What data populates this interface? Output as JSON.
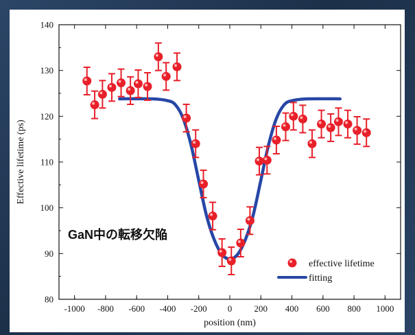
{
  "chart_data": {
    "type": "scatter",
    "annotation": "GaN中の転移欠陥",
    "xlabel": "position (nm)",
    "ylabel": "Effective lifetime (ps)",
    "xlim": [
      -1100,
      1100
    ],
    "ylim": [
      80,
      140
    ],
    "xticks": [
      -1000,
      -800,
      -600,
      -400,
      -200,
      0,
      200,
      400,
      600,
      800,
      1000
    ],
    "yticks": [
      80,
      90,
      100,
      110,
      120,
      130,
      140
    ],
    "grid": false,
    "legend_position": "bottom-right",
    "series": [
      {
        "name": "effective lifetime",
        "kind": "points_with_error_bars",
        "color": "#e8202a",
        "points": [
          {
            "x": -920,
            "y": 127.7,
            "err": 3
          },
          {
            "x": -870,
            "y": 122.5,
            "err": 3
          },
          {
            "x": -820,
            "y": 124.8,
            "err": 3
          },
          {
            "x": -760,
            "y": 126.3,
            "err": 3
          },
          {
            "x": -700,
            "y": 127.3,
            "err": 3
          },
          {
            "x": -640,
            "y": 125.6,
            "err": 3
          },
          {
            "x": -590,
            "y": 127.1,
            "err": 3
          },
          {
            "x": -530,
            "y": 126.5,
            "err": 3
          },
          {
            "x": -460,
            "y": 133.0,
            "err": 3
          },
          {
            "x": -410,
            "y": 128.7,
            "err": 3
          },
          {
            "x": -340,
            "y": 130.8,
            "err": 3
          },
          {
            "x": -280,
            "y": 119.6,
            "err": 3
          },
          {
            "x": -220,
            "y": 114.0,
            "err": 3
          },
          {
            "x": -170,
            "y": 105.2,
            "err": 3
          },
          {
            "x": -110,
            "y": 98.2,
            "err": 3
          },
          {
            "x": -50,
            "y": 90.2,
            "err": 3
          },
          {
            "x": 10,
            "y": 88.4,
            "err": 3
          },
          {
            "x": 70,
            "y": 92.3,
            "err": 3
          },
          {
            "x": 130,
            "y": 97.2,
            "err": 3
          },
          {
            "x": 190,
            "y": 110.2,
            "err": 3
          },
          {
            "x": 240,
            "y": 110.4,
            "err": 3
          },
          {
            "x": 300,
            "y": 114.8,
            "err": 3
          },
          {
            "x": 360,
            "y": 117.7,
            "err": 3
          },
          {
            "x": 410,
            "y": 120.0,
            "err": 3
          },
          {
            "x": 470,
            "y": 119.4,
            "err": 3
          },
          {
            "x": 530,
            "y": 114.0,
            "err": 3
          },
          {
            "x": 590,
            "y": 118.3,
            "err": 3
          },
          {
            "x": 650,
            "y": 117.5,
            "err": 3
          },
          {
            "x": 700,
            "y": 118.8,
            "err": 3
          },
          {
            "x": 760,
            "y": 118.3,
            "err": 3
          },
          {
            "x": 820,
            "y": 116.9,
            "err": 3
          },
          {
            "x": 880,
            "y": 116.4,
            "err": 3
          }
        ]
      },
      {
        "name": "fitting",
        "kind": "line",
        "color": "#2747a6",
        "points": [
          {
            "x": -710,
            "y": 123.8
          },
          {
            "x": -500,
            "y": 123.8
          },
          {
            "x": -400,
            "y": 123.4
          },
          {
            "x": -350,
            "y": 122.5
          },
          {
            "x": -300,
            "y": 119.5
          },
          {
            "x": -250,
            "y": 113.8
          },
          {
            "x": -200,
            "y": 106.0
          },
          {
            "x": -150,
            "y": 98.3
          },
          {
            "x": -100,
            "y": 93.0
          },
          {
            "x": -50,
            "y": 89.8
          },
          {
            "x": 0,
            "y": 88.8
          },
          {
            "x": 50,
            "y": 89.8
          },
          {
            "x": 100,
            "y": 93.0
          },
          {
            "x": 150,
            "y": 98.3
          },
          {
            "x": 200,
            "y": 106.0
          },
          {
            "x": 250,
            "y": 113.8
          },
          {
            "x": 300,
            "y": 119.5
          },
          {
            "x": 350,
            "y": 122.5
          },
          {
            "x": 400,
            "y": 123.4
          },
          {
            "x": 500,
            "y": 123.8
          },
          {
            "x": 710,
            "y": 123.8
          }
        ]
      }
    ]
  }
}
